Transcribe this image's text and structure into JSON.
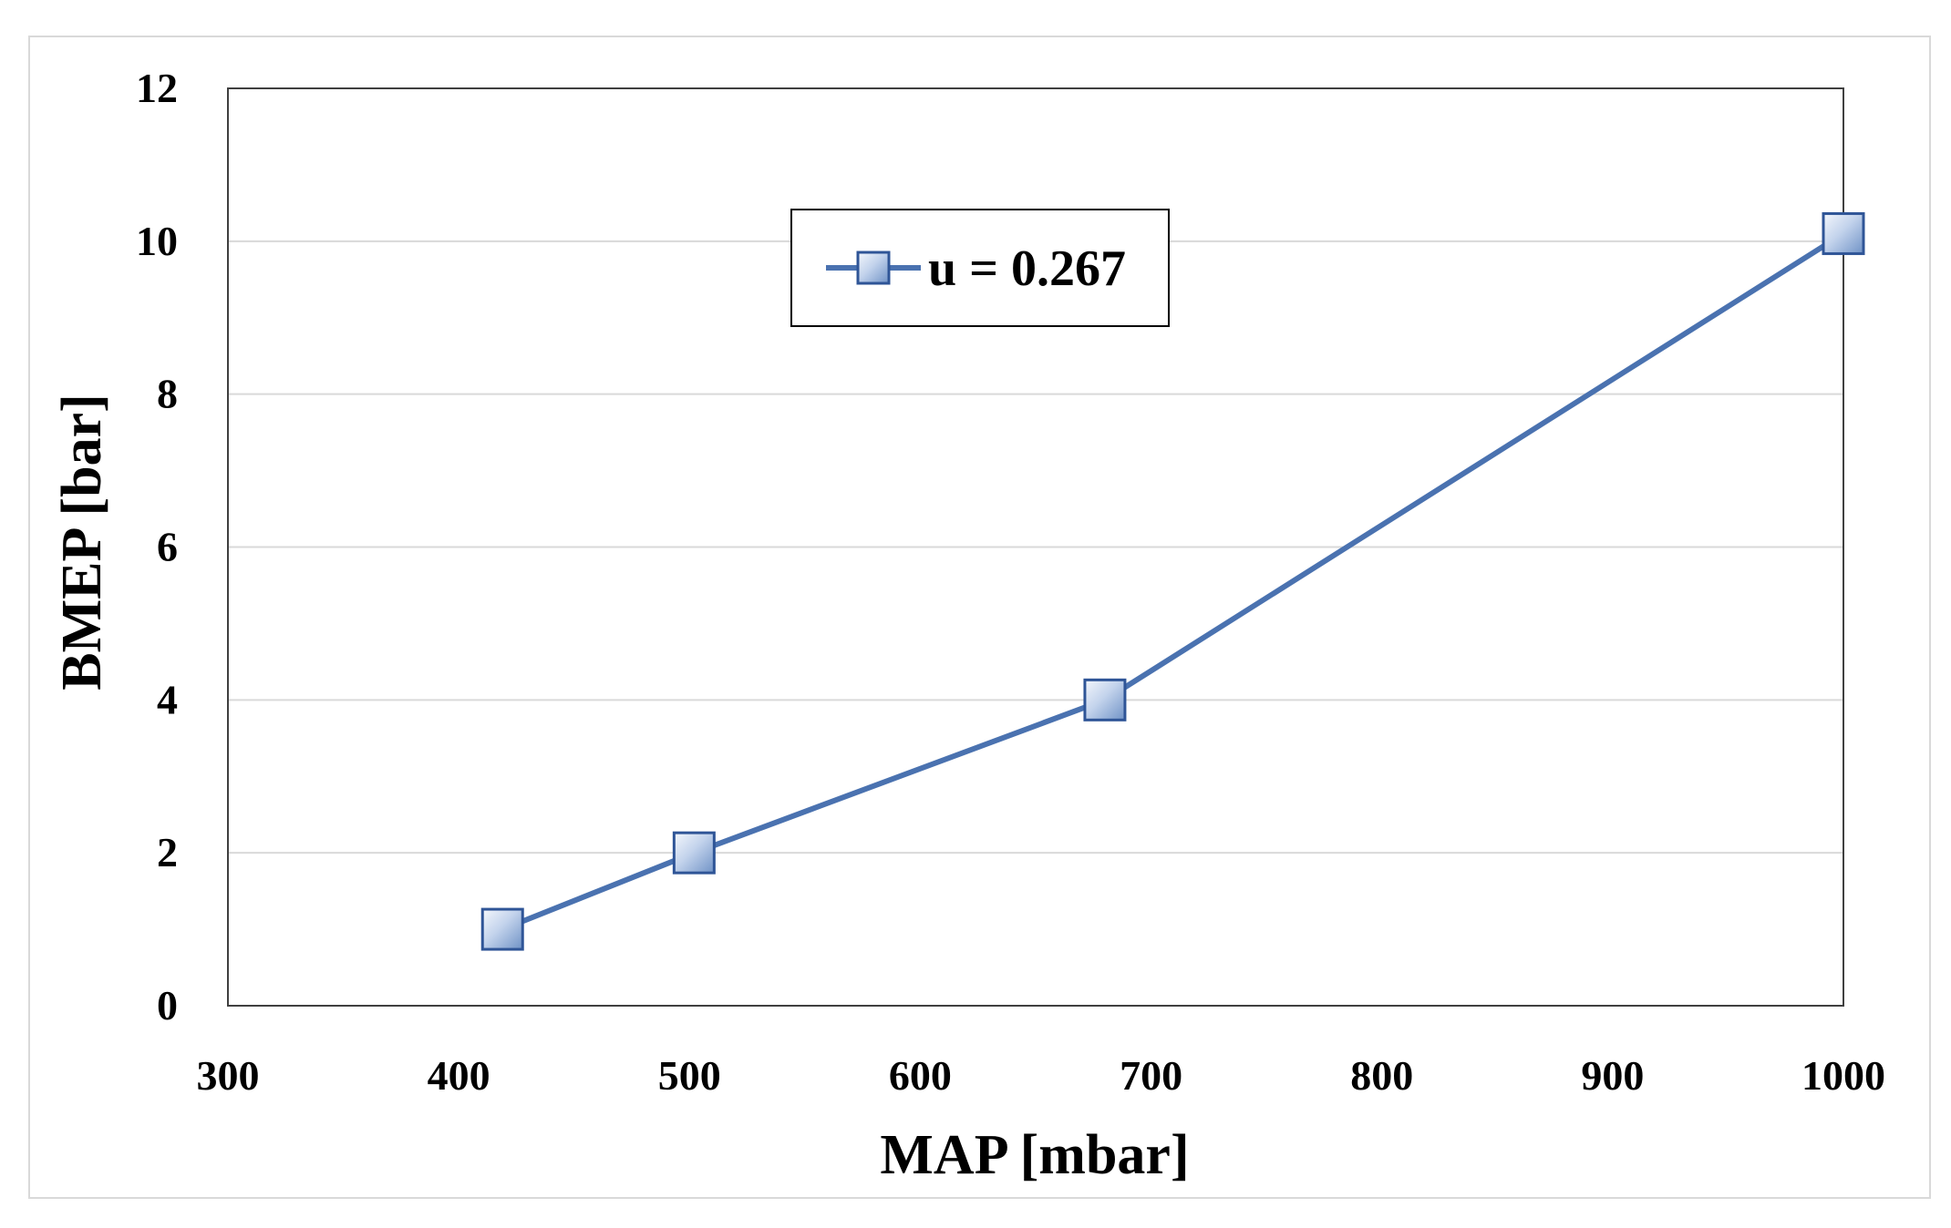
{
  "chart_data": {
    "type": "line",
    "xlabel": "MAP [mbar]",
    "ylabel": "BMEP [bar]",
    "xlim": [
      300,
      1000
    ],
    "ylim": [
      0,
      12
    ],
    "xticks": [
      300,
      400,
      500,
      600,
      700,
      800,
      900,
      1000
    ],
    "yticks": [
      0,
      2,
      4,
      6,
      8,
      10,
      12
    ],
    "grid": "horizontal",
    "legend_position": "top-center",
    "series": [
      {
        "name": "u = 0.267",
        "color": "#4a72b0",
        "marker": "square",
        "x": [
          419,
          502,
          680,
          1000
        ],
        "y": [
          1.0,
          2.0,
          4.0,
          10.1
        ]
      }
    ]
  }
}
